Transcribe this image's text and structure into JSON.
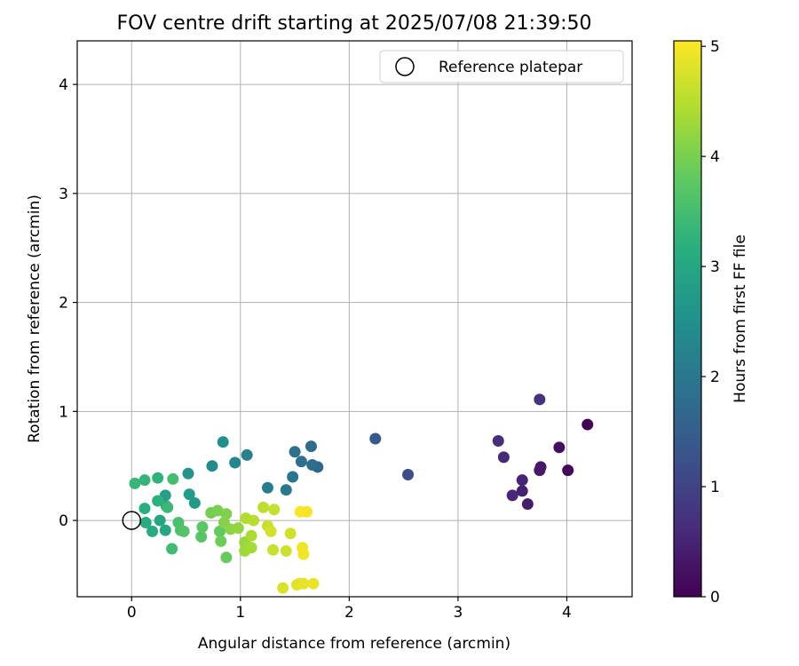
{
  "chart_data": {
    "type": "scatter",
    "title": "FOV centre drift starting at 2025/07/08 21:39:50",
    "xlabel": "Angular distance from reference (arcmin)",
    "ylabel": "Rotation from reference (arcmin)",
    "xlim": [
      -0.5,
      4.6
    ],
    "ylim": [
      -0.7,
      4.4
    ],
    "xticks": [
      "0",
      "1",
      "2",
      "3",
      "4"
    ],
    "yticks": [
      "0",
      "1",
      "2",
      "3",
      "4"
    ],
    "grid": true,
    "colormap": "viridis",
    "colorbar": {
      "label": "Hours from first FF file",
      "range": [
        0,
        5.05
      ],
      "ticks": [
        "0",
        "1",
        "2",
        "3",
        "4",
        "5"
      ]
    },
    "legend": {
      "position": "top-right",
      "entries": [
        "Reference platepar"
      ]
    },
    "reference_point": {
      "x": 0,
      "y": 0
    },
    "points": [
      {
        "x": 4.19,
        "y": 0.88,
        "h": 0.0
      },
      {
        "x": 4.01,
        "y": 0.46,
        "h": 0.1
      },
      {
        "x": 3.93,
        "y": 0.67,
        "h": 0.2
      },
      {
        "x": 3.76,
        "y": 0.49,
        "h": 0.3
      },
      {
        "x": 3.75,
        "y": 0.46,
        "h": 0.35
      },
      {
        "x": 3.64,
        "y": 0.15,
        "h": 0.4
      },
      {
        "x": 3.59,
        "y": 0.27,
        "h": 0.45
      },
      {
        "x": 3.59,
        "y": 0.37,
        "h": 0.5
      },
      {
        "x": 3.5,
        "y": 0.23,
        "h": 0.55
      },
      {
        "x": 3.42,
        "y": 0.58,
        "h": 0.6
      },
      {
        "x": 3.37,
        "y": 0.73,
        "h": 0.65
      },
      {
        "x": 3.75,
        "y": 1.11,
        "h": 0.7
      },
      {
        "x": 2.54,
        "y": 0.42,
        "h": 1.2
      },
      {
        "x": 2.24,
        "y": 0.75,
        "h": 1.4
      },
      {
        "x": 1.71,
        "y": 0.49,
        "h": 1.7
      },
      {
        "x": 1.65,
        "y": 0.68,
        "h": 1.75
      },
      {
        "x": 1.66,
        "y": 0.51,
        "h": 1.8
      },
      {
        "x": 1.56,
        "y": 0.54,
        "h": 1.85
      },
      {
        "x": 1.5,
        "y": 0.63,
        "h": 1.9
      },
      {
        "x": 1.48,
        "y": 0.4,
        "h": 1.95
      },
      {
        "x": 1.42,
        "y": 0.28,
        "h": 2.0
      },
      {
        "x": 1.25,
        "y": 0.3,
        "h": 2.1
      },
      {
        "x": 1.06,
        "y": 0.6,
        "h": 2.2
      },
      {
        "x": 0.95,
        "y": 0.53,
        "h": 2.3
      },
      {
        "x": 0.74,
        "y": 0.5,
        "h": 2.4
      },
      {
        "x": 0.84,
        "y": 0.72,
        "h": 2.5
      },
      {
        "x": 0.52,
        "y": 0.43,
        "h": 2.6
      },
      {
        "x": 0.58,
        "y": 0.16,
        "h": 2.7
      },
      {
        "x": 0.53,
        "y": 0.24,
        "h": 2.75
      },
      {
        "x": 0.31,
        "y": 0.23,
        "h": 2.85
      },
      {
        "x": 0.32,
        "y": 0.13,
        "h": 2.9
      },
      {
        "x": 0.26,
        "y": 0.0,
        "h": 2.95
      },
      {
        "x": 0.31,
        "y": -0.09,
        "h": 3.0
      },
      {
        "x": 0.19,
        "y": -0.1,
        "h": 3.05
      },
      {
        "x": 0.13,
        "y": -0.02,
        "h": 3.1
      },
      {
        "x": 0.12,
        "y": 0.11,
        "h": 3.15
      },
      {
        "x": 0.24,
        "y": 0.18,
        "h": 3.2
      },
      {
        "x": 0.24,
        "y": 0.39,
        "h": 3.25
      },
      {
        "x": 0.12,
        "y": 0.37,
        "h": 3.3
      },
      {
        "x": 0.03,
        "y": 0.34,
        "h": 3.35
      },
      {
        "x": 0.33,
        "y": 0.12,
        "h": 3.4
      },
      {
        "x": 0.37,
        "y": -0.26,
        "h": 3.45
      },
      {
        "x": 0.38,
        "y": 0.38,
        "h": 3.5
      },
      {
        "x": 0.43,
        "y": -0.02,
        "h": 3.55
      },
      {
        "x": 0.45,
        "y": -0.09,
        "h": 3.6
      },
      {
        "x": 0.48,
        "y": -0.1,
        "h": 3.65
      },
      {
        "x": 0.64,
        "y": -0.15,
        "h": 3.7
      },
      {
        "x": 0.65,
        "y": -0.06,
        "h": 3.75
      },
      {
        "x": 0.81,
        "y": -0.1,
        "h": 3.8
      },
      {
        "x": 0.87,
        "y": -0.34,
        "h": 3.85
      },
      {
        "x": 0.82,
        "y": -0.19,
        "h": 3.9
      },
      {
        "x": 0.73,
        "y": 0.07,
        "h": 3.95
      },
      {
        "x": 0.79,
        "y": 0.09,
        "h": 4.0
      },
      {
        "x": 0.87,
        "y": 0.06,
        "h": 4.05
      },
      {
        "x": 0.85,
        "y": -0.02,
        "h": 4.1
      },
      {
        "x": 0.91,
        "y": -0.08,
        "h": 4.15
      },
      {
        "x": 0.98,
        "y": -0.07,
        "h": 4.2
      },
      {
        "x": 1.04,
        "y": -0.2,
        "h": 4.25
      },
      {
        "x": 1.04,
        "y": -0.28,
        "h": 4.3
      },
      {
        "x": 1.1,
        "y": -0.25,
        "h": 4.35
      },
      {
        "x": 1.1,
        "y": -0.14,
        "h": 4.4
      },
      {
        "x": 1.05,
        "y": 0.02,
        "h": 4.45
      },
      {
        "x": 1.12,
        "y": 0.0,
        "h": 4.5
      },
      {
        "x": 1.21,
        "y": 0.12,
        "h": 4.55
      },
      {
        "x": 1.31,
        "y": 0.1,
        "h": 4.6
      },
      {
        "x": 1.25,
        "y": -0.05,
        "h": 4.62
      },
      {
        "x": 1.3,
        "y": -0.27,
        "h": 4.64
      },
      {
        "x": 1.42,
        "y": -0.28,
        "h": 4.66
      },
      {
        "x": 1.46,
        "y": -0.12,
        "h": 4.7
      },
      {
        "x": 1.28,
        "y": -0.1,
        "h": 4.72
      },
      {
        "x": 1.39,
        "y": -0.62,
        "h": 4.76
      },
      {
        "x": 1.52,
        "y": -0.59,
        "h": 4.8
      },
      {
        "x": 1.54,
        "y": -0.58,
        "h": 4.84
      },
      {
        "x": 1.58,
        "y": -0.58,
        "h": 4.86
      },
      {
        "x": 1.67,
        "y": -0.58,
        "h": 4.9
      },
      {
        "x": 1.57,
        "y": -0.25,
        "h": 4.93
      },
      {
        "x": 1.58,
        "y": -0.31,
        "h": 4.96
      },
      {
        "x": 1.61,
        "y": 0.08,
        "h": 4.98
      },
      {
        "x": 1.55,
        "y": 0.08,
        "h": 5.0
      }
    ]
  }
}
